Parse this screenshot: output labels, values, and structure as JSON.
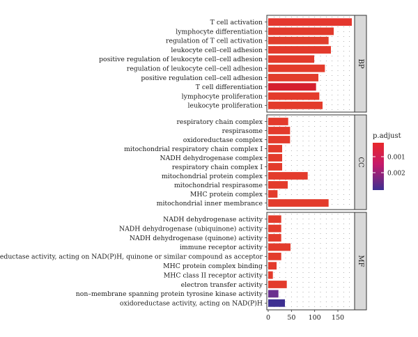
{
  "chart_data": {
    "type": "bar",
    "orientation": "horizontal",
    "title": "",
    "xlabel": "",
    "ylabel": "",
    "xlim": [
      0,
      185
    ],
    "xticks": [
      0,
      50,
      100,
      150
    ],
    "grid": true,
    "legend": {
      "title": "p.adjust",
      "position": "right",
      "ticks": [
        "0.001",
        "0.002"
      ],
      "gradient": [
        "#e8282a",
        "#c61a6a",
        "#3d2f91"
      ]
    },
    "panels": [
      {
        "name": "BP",
        "categories": [
          "T cell activation",
          "lymphocyte differentiation",
          "regulation of T cell activation",
          "leukocyte cell–cell adhesion",
          "positive regulation of leukocyte cell–cell adhesion",
          "regulation of leukocyte cell–cell adhesion",
          "positive regulation cell–cell adhesion",
          "T cell differentiation",
          "lymphocyte proliferation",
          "leukocyte proliferation"
        ],
        "values": [
          180,
          141,
          130,
          135,
          99,
          122,
          108,
          103,
          110,
          117
        ],
        "colors": [
          "#e4372e",
          "#e13a2c",
          "#e03f2d",
          "#e33a2c",
          "#e23a2c",
          "#e33b2b",
          "#e23c2b",
          "#d5202e",
          "#e43b2c",
          "#e33c2b"
        ]
      },
      {
        "name": "CC",
        "categories": [
          "respiratory chain complex",
          "respirasome",
          "oxidoreductase complex",
          "mitochondrial respiratory chain complex I",
          "NADH dehydrogenase complex",
          "respiratory chain complex I",
          "mitochondrial protein complex",
          "mitochondrial respirasome",
          "MHC protein complex",
          "mitochondrial inner membrance"
        ],
        "values": [
          43,
          47,
          47,
          30,
          30,
          30,
          85,
          42,
          20,
          130
        ],
        "colors": [
          "#e33b2c",
          "#e33b2c",
          "#e33b2c",
          "#e33b2c",
          "#e33b2c",
          "#e33b2c",
          "#e33b2c",
          "#e33b2c",
          "#e33b2c",
          "#e33b2c"
        ]
      },
      {
        "name": "MF",
        "categories": [
          "NADH dehydrogenase activity",
          "NADH dehydrogenase (ubiquinone) activity",
          "NADH dehydrogenase (quinone) activity",
          "immune receptor activity",
          "oxidoreductase activity, acting on NAD(P)H, quinone or similar compound as acceptor",
          "MHC protein complex binding",
          "MHC class II receptor activity",
          "electron transfer activity",
          "non–membrane spanning protein tyrosine kinase activity",
          "oxidoreductase activity, acting on NAD(P)H"
        ],
        "values": [
          28,
          28,
          28,
          48,
          28,
          18,
          10,
          40,
          22,
          36
        ],
        "colors": [
          "#e33b2c",
          "#e33b2c",
          "#e33b2c",
          "#e33b2c",
          "#e33b2c",
          "#e33b2c",
          "#e33b2c",
          "#e33b2c",
          "#6a2f8e",
          "#3d2f91"
        ]
      }
    ]
  }
}
